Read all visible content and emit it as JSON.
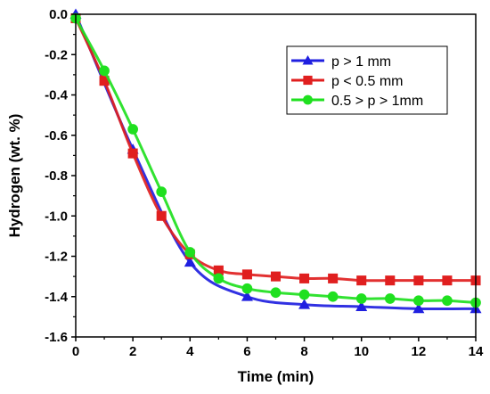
{
  "chart_data": {
    "type": "line",
    "xlabel": "Time (min)",
    "ylabel": "Hydrogen (wt. %)",
    "xlim": [
      0,
      14
    ],
    "ylim": [
      -1.6,
      0.0
    ],
    "xticks": [
      0,
      2,
      4,
      6,
      8,
      10,
      12,
      14
    ],
    "xtick_labels": [
      "0",
      "2",
      "4",
      "6",
      "8",
      "10",
      "12",
      "14"
    ],
    "yticks": [
      0.0,
      -0.2,
      -0.4,
      -0.6,
      -0.8,
      -1.0,
      -1.2,
      -1.4,
      -1.6
    ],
    "ytick_labels": [
      "0.0",
      "-0.2",
      "-0.4",
      "-0.6",
      "-0.8",
      "-1.0",
      "-1.2",
      "-1.4",
      "-1.6"
    ],
    "grid": false,
    "legend_position": "top-right",
    "series": [
      {
        "name": "p > 1 mm",
        "color": "#1f1fe0",
        "marker": "triangle",
        "x": [
          0,
          2,
          4,
          6,
          8,
          10,
          12,
          14
        ],
        "y": [
          0.0,
          -0.67,
          -1.23,
          -1.4,
          -1.44,
          -1.45,
          -1.46,
          -1.46
        ]
      },
      {
        "name": "p < 0.5 mm",
        "color": "#e01f1f",
        "marker": "square",
        "x": [
          0,
          1,
          2,
          3,
          4,
          5,
          6,
          7,
          8,
          9,
          10,
          11,
          12,
          13,
          14
        ],
        "y": [
          -0.02,
          -0.33,
          -0.69,
          -1.0,
          -1.19,
          -1.27,
          -1.29,
          -1.3,
          -1.31,
          -1.31,
          -1.32,
          -1.32,
          -1.32,
          -1.32,
          -1.32
        ]
      },
      {
        "name": "0.5 > p > 1mm",
        "color": "#1fe01f",
        "marker": "circle",
        "x": [
          0,
          1,
          2,
          3,
          4,
          5,
          6,
          7,
          8,
          9,
          10,
          11,
          12,
          13,
          14
        ],
        "y": [
          -0.02,
          -0.28,
          -0.57,
          -0.88,
          -1.18,
          -1.31,
          -1.36,
          -1.38,
          -1.39,
          -1.4,
          -1.41,
          -1.41,
          -1.42,
          -1.42,
          -1.43
        ]
      }
    ]
  }
}
